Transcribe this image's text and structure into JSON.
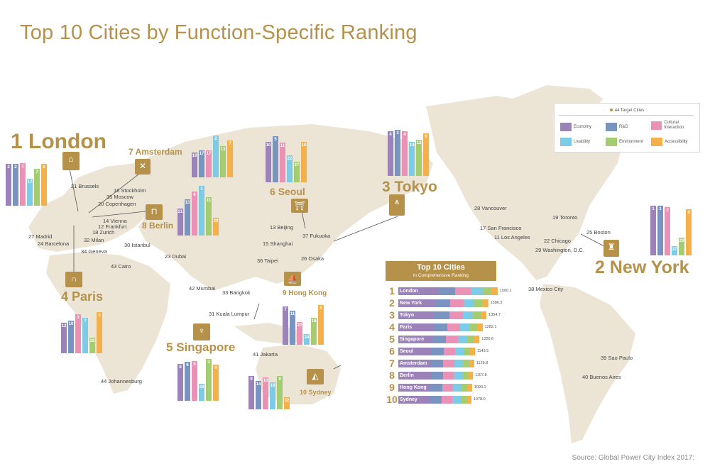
{
  "title": "Top 10 Cities by Function-Specific Ranking",
  "source": "Source: Global Power City Index 2017:",
  "colors": {
    "gold": "#b5914a",
    "economy": "#9b82b8",
    "rd": "#7a94c2",
    "cultural": "#e992b6",
    "livability": "#7ccbe7",
    "environment": "#a4cd72",
    "accessibility": "#f4b04a",
    "land": "#ece5d6"
  },
  "legend": {
    "title": "44 Target Cities",
    "items": [
      {
        "label": "Economy",
        "color": "#9b82b8"
      },
      {
        "label": "R&D",
        "color": "#7a94c2"
      },
      {
        "label": "Cultural Interaction",
        "color": "#e992b6"
      },
      {
        "label": "Livability",
        "color": "#7ccbe7"
      },
      {
        "label": "Environment",
        "color": "#a4cd72"
      },
      {
        "label": "Accessibility",
        "color": "#f4b04a"
      }
    ]
  },
  "top_cities": [
    {
      "rank": "1",
      "name": "London",
      "func_ranks": [
        "2",
        "2",
        "1",
        "17",
        "7",
        "2"
      ]
    },
    {
      "rank": "2",
      "name": "New York",
      "func_ranks": [
        "1",
        "1",
        "2",
        "37",
        "29",
        "4"
      ]
    },
    {
      "rank": "3",
      "name": "Tokyo",
      "func_ranks": [
        "4",
        "3",
        "4",
        "14",
        "12",
        "6"
      ]
    },
    {
      "rank": "4",
      "name": "Paris",
      "func_ranks": [
        "12",
        "10",
        "3",
        "7",
        "28",
        "1"
      ]
    },
    {
      "rank": "5",
      "name": "Singapore",
      "func_ranks": [
        "8",
        "6",
        "5",
        "28",
        "3",
        "9"
      ]
    },
    {
      "rank": "6",
      "name": "Seoul",
      "func_ranks": [
        "10",
        "5",
        "11",
        "22",
        "27",
        "10"
      ]
    },
    {
      "rank": "7",
      "name": "Amsterdam",
      "func_ranks": [
        "19",
        "17",
        "17",
        "2",
        "13",
        "7"
      ]
    },
    {
      "rank": "8",
      "name": "Berlin",
      "func_ranks": [
        "21",
        "13",
        "6",
        "1",
        "11",
        "29"
      ]
    },
    {
      "rank": "9",
      "name": "Hong Kong",
      "func_ranks": [
        "7",
        "11",
        "22",
        "34",
        "18",
        "5"
      ]
    },
    {
      "rank": "10",
      "name": "Sydney",
      "func_ranks": [
        "9",
        "14",
        "10",
        "16",
        "9",
        "32"
      ]
    }
  ],
  "cities": [
    {
      "label": "21 Brussels"
    },
    {
      "label": "16 Stockholm"
    },
    {
      "label": "35 Moscow"
    },
    {
      "label": "20 Copenhagen"
    },
    {
      "label": "14 Vienna"
    },
    {
      "label": "12 Frankfurt"
    },
    {
      "label": "18 Zurich"
    },
    {
      "label": "27 Madrid"
    },
    {
      "label": "24 Barcelona"
    },
    {
      "label": "32 Milan"
    },
    {
      "label": "30 Istanbul"
    },
    {
      "label": "34 Geneva"
    },
    {
      "label": "23 Dubai"
    },
    {
      "label": "43 Cairo"
    },
    {
      "label": "42 Mumbai"
    },
    {
      "label": "33 Bangkok"
    },
    {
      "label": "31 Kuala Lumpur"
    },
    {
      "label": "41 Jakarta"
    },
    {
      "label": "44 Johannesburg"
    },
    {
      "label": "13 Beijing"
    },
    {
      "label": "15 Shanghai"
    },
    {
      "label": "37 Fukuoka"
    },
    {
      "label": "26 Osaka"
    },
    {
      "label": "36 Taipei"
    },
    {
      "label": "28 Vancouver"
    },
    {
      "label": "17 San Francisco"
    },
    {
      "label": "11 Los Angeles"
    },
    {
      "label": "19 Toronto"
    },
    {
      "label": "25 Boston"
    },
    {
      "label": "22 Chicago"
    },
    {
      "label": "29 Washington, D.C."
    },
    {
      "label": "38 Mexico City"
    },
    {
      "label": "39 Sao Paulo"
    },
    {
      "label": "40 Buenos Aires"
    }
  ],
  "comprehensive": {
    "title": "Top 10 Cities",
    "subtitle": "in Comprehensive Ranking",
    "rows": [
      {
        "rank": "1",
        "name": "London",
        "score": "1560.1",
        "score_val": 1560.1
      },
      {
        "rank": "2",
        "name": "New York",
        "score": "1386.3",
        "score_val": 1386.3
      },
      {
        "rank": "3",
        "name": "Tokyo",
        "score": "1354.7",
        "score_val": 1354.7
      },
      {
        "rank": "4",
        "name": "Paris",
        "score": "1282.1",
        "score_val": 1282.1
      },
      {
        "rank": "5",
        "name": "Singapore",
        "score": "1226.6",
        "score_val": 1226.6
      },
      {
        "rank": "6",
        "name": "Seoul",
        "score": "1143.5",
        "score_val": 1143.5
      },
      {
        "rank": "7",
        "name": "Amsterdam",
        "score": "1129.8",
        "score_val": 1129.8
      },
      {
        "rank": "8",
        "name": "Berlin",
        "score": "1107.8",
        "score_val": 1107.8
      },
      {
        "rank": "9",
        "name": "Hong Kong",
        "score": "1090.1",
        "score_val": 1090.1
      },
      {
        "rank": "10",
        "name": "Sydney",
        "score": "1078.0",
        "score_val": 1078.0
      }
    ]
  }
}
